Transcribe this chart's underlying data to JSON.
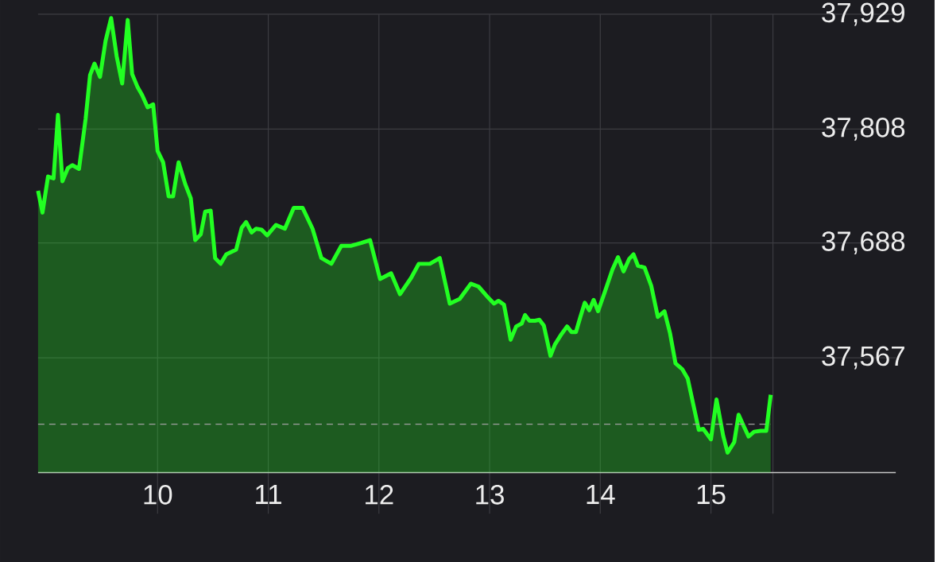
{
  "chart_data": {
    "type": "area",
    "x": [
      8.92,
      8.96,
      9.01,
      9.06,
      9.1,
      9.14,
      9.19,
      9.23,
      9.29,
      9.35,
      9.39,
      9.43,
      9.48,
      9.53,
      9.58,
      9.63,
      9.68,
      9.73,
      9.77,
      9.82,
      9.86,
      9.91,
      9.96,
      10.0,
      10.05,
      10.1,
      10.14,
      10.19,
      10.25,
      10.3,
      10.34,
      10.39,
      10.43,
      10.48,
      10.52,
      10.57,
      10.62,
      10.71,
      10.76,
      10.8,
      10.85,
      10.89,
      10.94,
      10.99,
      11.07,
      11.15,
      11.23,
      11.31,
      11.4,
      11.48,
      11.57,
      11.66,
      11.75,
      11.84,
      11.92,
      12.01,
      12.11,
      12.19,
      12.29,
      12.36,
      12.46,
      12.55,
      12.64,
      12.73,
      12.83,
      12.9,
      12.99,
      13.04,
      13.08,
      13.13,
      13.19,
      13.24,
      13.29,
      13.32,
      13.36,
      13.41,
      13.45,
      13.49,
      13.55,
      13.59,
      13.65,
      13.7,
      13.74,
      13.78,
      13.82,
      13.86,
      13.9,
      13.94,
      13.98,
      14.04,
      14.11,
      14.16,
      14.21,
      14.26,
      14.3,
      14.34,
      14.4,
      14.46,
      14.52,
      14.58,
      14.63,
      14.68,
      14.74,
      14.79,
      14.89,
      14.93,
      15.0,
      15.05,
      15.11,
      15.15,
      15.21,
      15.25,
      15.3,
      15.34,
      15.39,
      15.45,
      15.5,
      15.54
    ],
    "values": [
      37743,
      37720,
      37758,
      37756,
      37823,
      37753,
      37767,
      37770,
      37766,
      37819,
      37865,
      37877,
      37863,
      37901,
      37925,
      37885,
      37856,
      37923,
      37866,
      37852,
      37844,
      37831,
      37834,
      37785,
      37773,
      37737,
      37737,
      37773,
      37750,
      37735,
      37691,
      37697,
      37721,
      37722,
      37672,
      37666,
      37676,
      37681,
      37704,
      37710,
      37699,
      37703,
      37702,
      37696,
      37707,
      37703,
      37725,
      37725,
      37703,
      37672,
      37666,
      37685,
      37685,
      37688,
      37691,
      37650,
      37656,
      37634,
      37651,
      37666,
      37666,
      37672,
      37624,
      37629,
      37645,
      37642,
      37630,
      37624,
      37627,
      37623,
      37586,
      37600,
      37603,
      37612,
      37606,
      37606,
      37607,
      37601,
      37569,
      37581,
      37592,
      37600,
      37594,
      37594,
      37610,
      37625,
      37617,
      37628,
      37616,
      37636,
      37660,
      37673,
      37658,
      37671,
      37676,
      37664,
      37662,
      37643,
      37610,
      37616,
      37593,
      37561,
      37555,
      37545,
      37491,
      37492,
      37481,
      37523,
      37485,
      37467,
      37478,
      37507,
      37494,
      37484,
      37489,
      37490,
      37490,
      37528
    ],
    "color": "#22ff22",
    "xlim": [
      8.92,
      16.67
    ],
    "ylim": [
      37446,
      37929
    ],
    "xticks": [
      10,
      11,
      12,
      13,
      14,
      15,
      {
        "value": 15.56,
        "label": null
      }
    ],
    "yticks": [
      {
        "value": 37567,
        "label": "37,567"
      },
      {
        "value": 37688,
        "label": "37,688"
      },
      {
        "value": 37808,
        "label": "37,808"
      },
      {
        "value": 37929,
        "label": "37,929"
      }
    ],
    "grid": true,
    "ref_lines": [
      {
        "axis": "y",
        "value": 37497,
        "color": "#a0a0a0",
        "line_style": "dashed"
      }
    ]
  }
}
